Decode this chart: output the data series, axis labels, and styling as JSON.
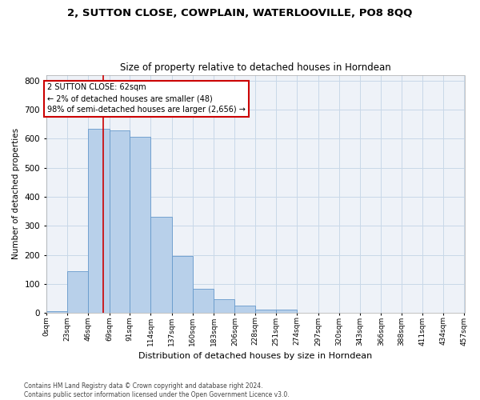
{
  "title": "2, SUTTON CLOSE, COWPLAIN, WATERLOOVILLE, PO8 8QQ",
  "subtitle": "Size of property relative to detached houses in Horndean",
  "xlabel": "Distribution of detached houses by size in Horndean",
  "ylabel": "Number of detached properties",
  "bar_color": "#b8d0ea",
  "bar_edge_color": "#6699cc",
  "grid_color": "#c8d8e8",
  "background_color": "#eef2f8",
  "annotation_box_color": "#cc0000",
  "vline_color": "#cc0000",
  "vline_x": 62,
  "annotation_lines": [
    "2 SUTTON CLOSE: 62sqm",
    "← 2% of detached houses are smaller (48)",
    "98% of semi-detached houses are larger (2,656) →"
  ],
  "tick_labels": [
    "0sqm",
    "23sqm",
    "46sqm",
    "69sqm",
    "91sqm",
    "114sqm",
    "137sqm",
    "160sqm",
    "183sqm",
    "206sqm",
    "228sqm",
    "251sqm",
    "274sqm",
    "297sqm",
    "320sqm",
    "343sqm",
    "366sqm",
    "388sqm",
    "411sqm",
    "434sqm",
    "457sqm"
  ],
  "bin_edges": [
    0,
    23,
    46,
    69,
    91,
    114,
    137,
    160,
    183,
    206,
    228,
    251,
    274,
    297,
    320,
    343,
    366,
    388,
    411,
    434,
    457
  ],
  "bar_heights": [
    5,
    143,
    635,
    630,
    607,
    330,
    197,
    84,
    47,
    24,
    12,
    10,
    0,
    0,
    0,
    0,
    0,
    0,
    0,
    0
  ],
  "ylim": [
    0,
    820
  ],
  "yticks": [
    0,
    100,
    200,
    300,
    400,
    500,
    600,
    700,
    800
  ],
  "footer_text": "Contains HM Land Registry data © Crown copyright and database right 2024.\nContains public sector information licensed under the Open Government Licence v3.0."
}
